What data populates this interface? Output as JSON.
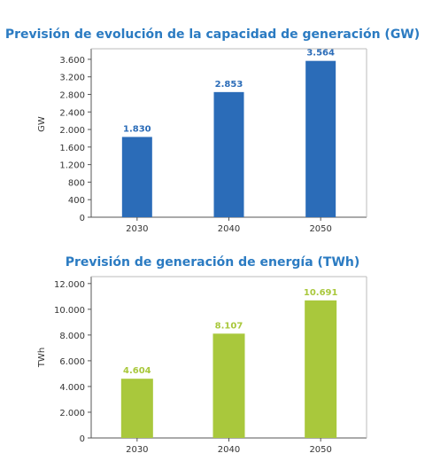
{
  "chart_data": [
    {
      "type": "bar",
      "title": "Previsión de evolución de la capacidad de generación (GW)",
      "ylabel": "GW",
      "xlabel": "",
      "categories": [
        "2030",
        "2040",
        "2050"
      ],
      "values": [
        1830,
        2853,
        3564
      ],
      "value_labels": [
        "1.830",
        "2.853",
        "3.564"
      ],
      "yticks": [
        0,
        400,
        800,
        1200,
        1600,
        2000,
        2400,
        2800,
        3200,
        3600
      ],
      "ytick_labels": [
        "0",
        "400",
        "800",
        "1.200",
        "1.600",
        "2.000",
        "2.400",
        "2.800",
        "3.200",
        "3.600"
      ],
      "ylim": [
        0,
        3800
      ],
      "grid": false,
      "color": "#2b6cb8",
      "title_color": "#2b7bc2"
    },
    {
      "type": "bar",
      "title": "Previsión de generación de energía (TWh)",
      "ylabel": "TWh",
      "xlabel": "",
      "categories": [
        "2030",
        "2040",
        "2050"
      ],
      "values": [
        4604,
        8107,
        10691
      ],
      "value_labels": [
        "4.604",
        "8.107",
        "10.691"
      ],
      "yticks": [
        0,
        2000,
        4000,
        6000,
        8000,
        10000,
        12000
      ],
      "ytick_labels": [
        "0",
        "2.000",
        "4.000",
        "6.000",
        "8.000",
        "10.000",
        "12.000"
      ],
      "ylim": [
        0,
        12400
      ],
      "grid": false,
      "color": "#a9c83c",
      "title_color": "#2b7bc2"
    }
  ]
}
